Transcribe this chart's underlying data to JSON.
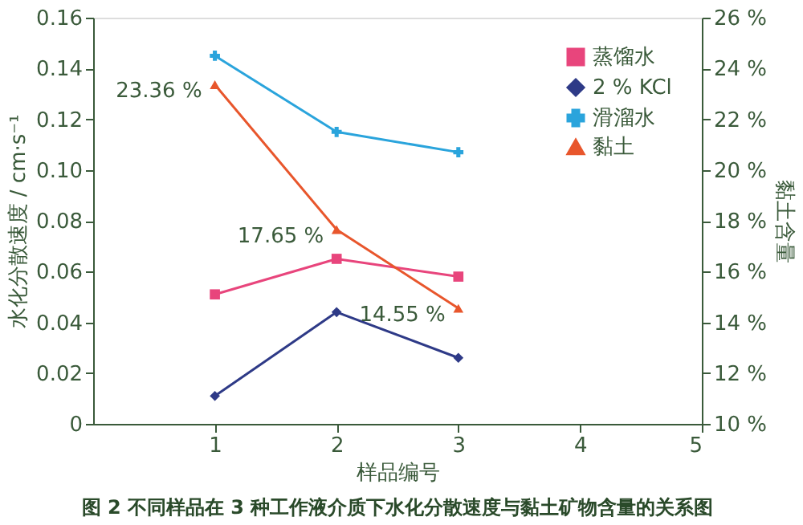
{
  "chart_data": {
    "type": "line",
    "title": "图 2   不同样品在 3 种工作液介质下水化分散速度与黏土矿物含量的关系图",
    "xlabel": "样品编号",
    "ylabel": "水化分散速度 / cm·s⁻¹",
    "y2label": "黏土含量",
    "x": [
      1,
      2,
      3
    ],
    "xlim": [
      0,
      5
    ],
    "xticks": [
      1,
      2,
      3,
      4,
      5
    ],
    "ylim": [
      0,
      0.16
    ],
    "yticks": [
      {
        "value": 0,
        "label": "0"
      },
      {
        "value": 0.02,
        "label": "0.02"
      },
      {
        "value": 0.04,
        "label": "0.04"
      },
      {
        "value": 0.06,
        "label": "0.06"
      },
      {
        "value": 0.08,
        "label": "0.08"
      },
      {
        "value": 0.1,
        "label": "0.10"
      },
      {
        "value": 0.12,
        "label": "0.12"
      },
      {
        "value": 0.14,
        "label": "0.14"
      },
      {
        "value": 0.16,
        "label": "0.16"
      }
    ],
    "y2lim": [
      10,
      26
    ],
    "y2ticks": [
      {
        "value": 10,
        "label": "10 %"
      },
      {
        "value": 12,
        "label": "12 %"
      },
      {
        "value": 14,
        "label": "14 %"
      },
      {
        "value": 16,
        "label": "16 %"
      },
      {
        "value": 18,
        "label": "18 %"
      },
      {
        "value": 20,
        "label": "20 %"
      },
      {
        "value": 22,
        "label": "22 %"
      },
      {
        "value": 24,
        "label": "24 %"
      },
      {
        "value": 26,
        "label": "26 %"
      }
    ],
    "series": [
      {
        "name": "蒸馏水",
        "color": "#e8457c",
        "marker": "square",
        "values": [
          0.051,
          0.065,
          0.058
        ]
      },
      {
        "name": "2 % KCl",
        "color": "#2e3a87",
        "marker": "diamond",
        "values": [
          0.011,
          0.044,
          0.026
        ]
      },
      {
        "name": "滑溜水",
        "color": "#2aa4dc",
        "marker": "cross",
        "values": [
          0.145,
          0.115,
          0.107
        ]
      },
      {
        "name": "黏土",
        "color": "#e8562c",
        "marker": "triangle",
        "axis": "y2",
        "values": [
          23.36,
          17.65,
          14.55
        ],
        "value_labels": [
          "23.36 %",
          "17.65 %",
          "14.55 %"
        ]
      }
    ],
    "legend": "top right",
    "grid": false
  }
}
